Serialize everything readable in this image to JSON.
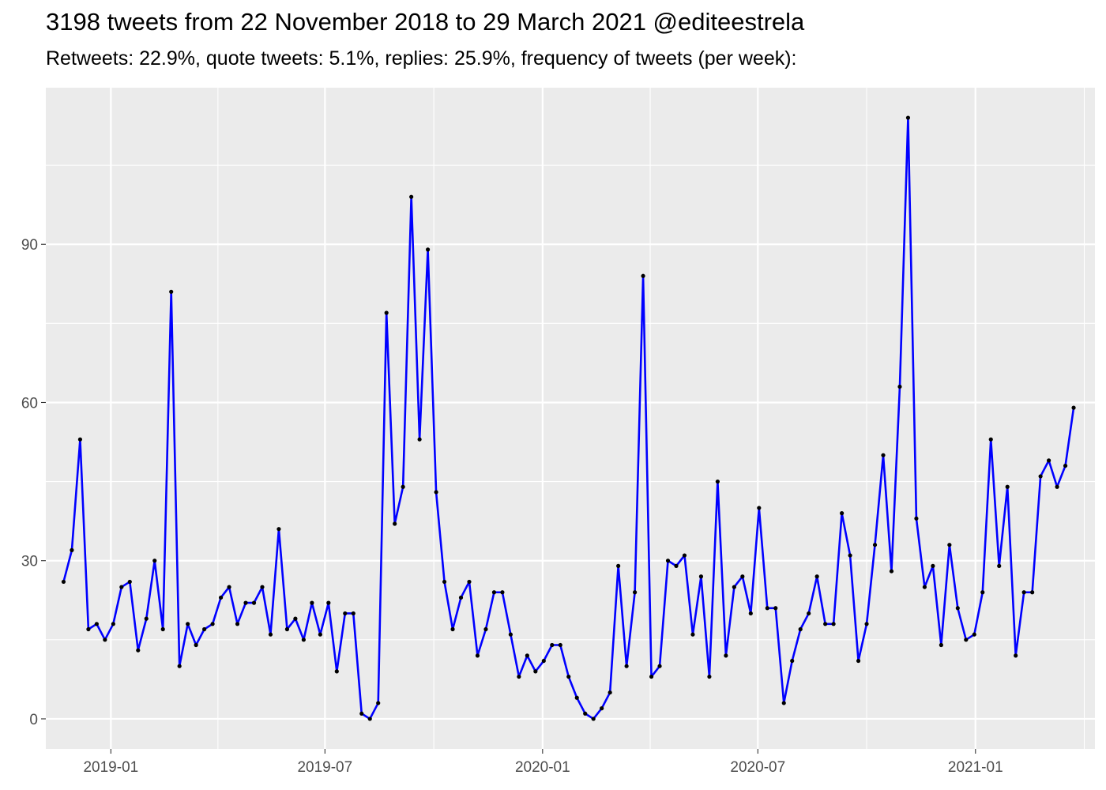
{
  "title": "3198 tweets from 22 November 2018 to 29 March 2021 @editeestrela",
  "subtitle": "Retweets: 22.9%, quote tweets: 5.1%, replies: 25.9%, frequency of tweets (per week):",
  "colors": {
    "line": "#0000ff",
    "point": "#000000",
    "panel": "#ebebeb",
    "grid": "#ffffff",
    "tick_text": "#4d4d4d"
  },
  "chart_data": {
    "type": "line",
    "title": "3198 tweets from 22 November 2018 to 29 March 2021 @editeestrela",
    "subtitle": "Retweets: 22.9%, quote tweets: 5.1%, replies: 25.9%, frequency of tweets (per week):",
    "xlabel": "",
    "ylabel": "",
    "x_axis": "date",
    "xlim": [
      "2018-11-07",
      "2021-04-12"
    ],
    "ylim": [
      -5.7,
      119.7
    ],
    "x_ticks": [
      "2019-01",
      "2019-07",
      "2020-01",
      "2020-07",
      "2021-01"
    ],
    "y_ticks": [
      0,
      30,
      60,
      90
    ],
    "grid": true,
    "legend": "none",
    "series": [
      {
        "x": [
          "2018-11-22",
          "2018-11-29",
          "2018-12-06",
          "2018-12-13",
          "2018-12-20",
          "2018-12-27",
          "2019-01-03",
          "2019-01-10",
          "2019-01-17",
          "2019-01-24",
          "2019-01-31",
          "2019-02-07",
          "2019-02-14",
          "2019-02-21",
          "2019-02-28",
          "2019-03-07",
          "2019-03-14",
          "2019-03-21",
          "2019-03-28",
          "2019-04-04",
          "2019-04-11",
          "2019-04-18",
          "2019-04-25",
          "2019-05-02",
          "2019-05-09",
          "2019-05-16",
          "2019-05-23",
          "2019-05-30",
          "2019-06-06",
          "2019-06-13",
          "2019-06-20",
          "2019-06-27",
          "2019-07-04",
          "2019-07-11",
          "2019-07-18",
          "2019-07-25",
          "2019-08-01",
          "2019-08-08",
          "2019-08-15",
          "2019-08-22",
          "2019-08-29",
          "2019-09-05",
          "2019-09-12",
          "2019-09-19",
          "2019-09-26",
          "2019-10-03",
          "2019-10-10",
          "2019-10-17",
          "2019-10-24",
          "2019-10-31",
          "2019-11-07",
          "2019-11-14",
          "2019-11-21",
          "2019-11-28",
          "2019-12-05",
          "2019-12-12",
          "2019-12-19",
          "2019-12-26",
          "2020-01-02",
          "2020-01-09",
          "2020-01-16",
          "2020-01-23",
          "2020-01-30",
          "2020-02-06",
          "2020-02-13",
          "2020-02-20",
          "2020-02-27",
          "2020-03-05",
          "2020-03-12",
          "2020-03-19",
          "2020-03-26",
          "2020-04-02",
          "2020-04-09",
          "2020-04-16",
          "2020-04-23",
          "2020-04-30",
          "2020-05-07",
          "2020-05-14",
          "2020-05-21",
          "2020-05-28",
          "2020-06-04",
          "2020-06-11",
          "2020-06-18",
          "2020-06-25",
          "2020-07-02",
          "2020-07-09",
          "2020-07-16",
          "2020-07-23",
          "2020-07-30",
          "2020-08-06",
          "2020-08-13",
          "2020-08-20",
          "2020-08-27",
          "2020-09-03",
          "2020-09-10",
          "2020-09-17",
          "2020-09-24",
          "2020-10-01",
          "2020-10-08",
          "2020-10-15",
          "2020-10-22",
          "2020-10-29",
          "2020-11-05",
          "2020-11-12",
          "2020-11-19",
          "2020-11-26",
          "2020-12-03",
          "2020-12-10",
          "2020-12-17",
          "2020-12-24",
          "2020-12-31",
          "2021-01-07",
          "2021-01-14",
          "2021-01-21",
          "2021-01-28",
          "2021-02-04",
          "2021-02-11",
          "2021-02-18",
          "2021-02-25",
          "2021-03-04",
          "2021-03-11",
          "2021-03-18",
          "2021-03-25"
        ],
        "y": [
          26,
          32,
          53,
          17,
          18,
          15,
          18,
          25,
          26,
          13,
          19,
          30,
          17,
          81,
          10,
          18,
          14,
          17,
          18,
          23,
          25,
          18,
          22,
          22,
          25,
          16,
          36,
          17,
          19,
          15,
          22,
          16,
          22,
          9,
          20,
          20,
          1,
          0,
          3,
          77,
          37,
          44,
          99,
          53,
          89,
          43,
          26,
          17,
          23,
          26,
          12,
          17,
          24,
          24,
          16,
          8,
          12,
          9,
          11,
          14,
          14,
          8,
          4,
          1,
          0,
          2,
          5,
          29,
          10,
          24,
          84,
          8,
          10,
          30,
          29,
          31,
          16,
          27,
          8,
          45,
          12,
          25,
          27,
          20,
          40,
          21,
          21,
          3,
          11,
          17,
          20,
          27,
          18,
          18,
          39,
          31,
          11,
          18,
          33,
          50,
          28,
          63,
          114,
          38,
          25,
          29,
          14,
          33,
          21,
          15,
          16,
          24,
          53,
          29,
          44,
          12,
          24,
          24,
          46,
          49,
          44,
          48,
          59
        ]
      }
    ]
  }
}
